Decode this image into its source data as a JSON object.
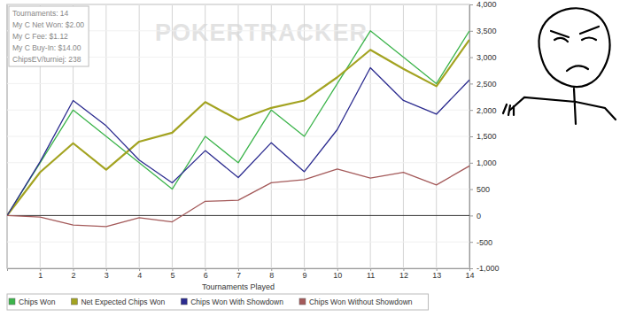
{
  "chart_data": {
    "type": "line",
    "xlabel": "Tournaments Played",
    "watermark": "POKERTRACKER",
    "annotations": [
      "Tournaments: 14",
      "My C Net Won: $2.00",
      "My C Fee: $1.12",
      "My C Buy-In: $14.00",
      "ChipsEV/turniej: 238"
    ],
    "x": [
      0,
      1,
      2,
      3,
      4,
      5,
      6,
      7,
      8,
      9,
      10,
      11,
      12,
      13,
      14
    ],
    "xlim": [
      0,
      14
    ],
    "xticks": [
      1,
      2,
      3,
      4,
      5,
      6,
      7,
      8,
      9,
      10,
      11,
      12,
      13,
      14
    ],
    "ylim": [
      -1000,
      4000
    ],
    "yticks": [
      {
        "value": -1000,
        "label": "-1,000"
      },
      -500,
      0,
      500,
      {
        "value": 1000,
        "label": "1,000"
      },
      {
        "value": 1500,
        "label": "1,500"
      },
      {
        "value": 2000,
        "label": "2,000"
      },
      {
        "value": 2500,
        "label": "2,500"
      },
      {
        "value": 3000,
        "label": "3,000"
      },
      {
        "value": 3500,
        "label": "3,500"
      },
      {
        "value": 4000,
        "label": "4,000"
      }
    ],
    "grid": true,
    "legend": "bottom",
    "series": [
      {
        "name": "Chips Won",
        "color": "#3cb44b",
        "values": [
          0,
          1000,
          2000,
          1500,
          1000,
          500,
          1500,
          1000,
          2000,
          1500,
          2500,
          3500,
          3000,
          2500,
          3500
        ]
      },
      {
        "name": "Net Expected Chips Won",
        "color": "#a3a321",
        "values": [
          0,
          820,
          1370,
          870,
          1400,
          1570,
          2150,
          1810,
          2040,
          2180,
          2620,
          3140,
          2780,
          2450,
          3330
        ]
      },
      {
        "name": "Chips Won With Showdown",
        "color": "#2b2b8f",
        "values": [
          0,
          1020,
          2180,
          1700,
          1050,
          620,
          1230,
          720,
          1380,
          830,
          1630,
          2800,
          2180,
          1920,
          2570
        ]
      },
      {
        "name": "Chips Won Without Showdown",
        "color": "#a45a5a",
        "values": [
          0,
          -30,
          -180,
          -210,
          -40,
          -120,
          270,
          290,
          620,
          680,
          880,
          710,
          820,
          580,
          940
        ]
      }
    ]
  }
}
